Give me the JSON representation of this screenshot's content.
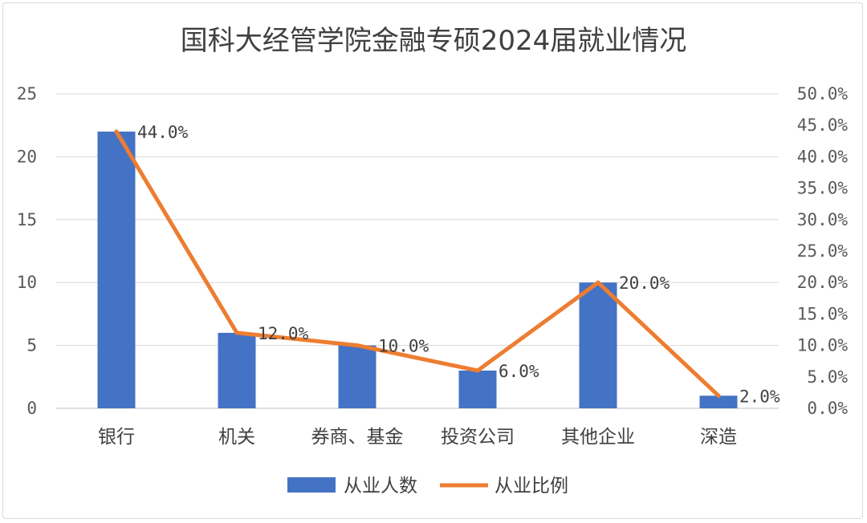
{
  "chart_data": {
    "type": "bar",
    "title": "国科大经管学院金融专硕2024届就业情况",
    "categories": [
      "银行",
      "机关",
      "券商、基金",
      "投资公司",
      "其他企业",
      "深造"
    ],
    "series": [
      {
        "name": "从业人数",
        "type": "bar",
        "axis": "left",
        "color": "#4472c4",
        "values": [
          22,
          6,
          5,
          3,
          10,
          1
        ]
      },
      {
        "name": "从业比例",
        "type": "line",
        "axis": "right",
        "color": "#ed7d31",
        "values": [
          0.44,
          0.12,
          0.1,
          0.06,
          0.2,
          0.02
        ]
      }
    ],
    "data_labels": [
      "44.0%",
      "12.0%",
      "10.0%",
      "6.0%",
      "20.0%",
      "2.0%"
    ],
    "left_axis": {
      "ylim": [
        0,
        25
      ],
      "ticks": [
        "0",
        "5",
        "10",
        "15",
        "20",
        "25"
      ]
    },
    "right_axis": {
      "ylim": [
        0,
        0.5
      ],
      "ticks": [
        "0.0%",
        "5.0%",
        "10.0%",
        "15.0%",
        "20.0%",
        "25.0%",
        "30.0%",
        "35.0%",
        "40.0%",
        "45.0%",
        "50.0%"
      ]
    },
    "grid": true,
    "legend_position": "bottom"
  }
}
